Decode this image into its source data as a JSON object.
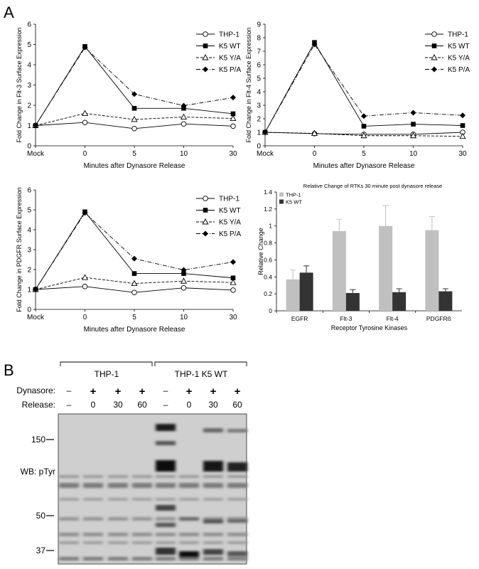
{
  "panel_a_label": "A",
  "panel_b_label": "B",
  "chart_data": [
    {
      "type": "line",
      "id": "flt3",
      "xlabel": "Minutes after Dynasore Release",
      "ylabel": "Fold Change in Flt-3 Surface Expression",
      "categories": [
        "Mock",
        "0",
        "5",
        "10",
        "30"
      ],
      "ylim": [
        0,
        6
      ],
      "yticks": [
        0,
        1,
        2,
        3,
        4,
        5,
        6
      ],
      "series": [
        {
          "name": "THP-1",
          "values": [
            1.0,
            1.15,
            0.85,
            1.08,
            0.97
          ]
        },
        {
          "name": "K5 WT",
          "values": [
            1.0,
            4.9,
            1.85,
            1.85,
            1.58
          ]
        },
        {
          "name": "K5 Y/A",
          "values": [
            1.0,
            1.6,
            1.3,
            1.42,
            1.35
          ]
        },
        {
          "name": "K5 P/A",
          "values": [
            1.0,
            4.85,
            2.55,
            1.98,
            2.38
          ]
        }
      ]
    },
    {
      "type": "line",
      "id": "flt4",
      "xlabel": "Minutes after Dynasore Release",
      "ylabel": "Fold Change in Flt-4 Surface Expression",
      "categories": [
        "Mock",
        "0",
        "5",
        "10",
        "30"
      ],
      "ylim": [
        0,
        9
      ],
      "yticks": [
        0,
        1,
        2,
        3,
        4,
        5,
        6,
        7,
        8,
        9
      ],
      "series": [
        {
          "name": "THP-1",
          "values": [
            1.0,
            0.9,
            0.85,
            0.85,
            1.0
          ]
        },
        {
          "name": "K5 WT",
          "values": [
            1.0,
            7.65,
            1.45,
            1.6,
            1.5
          ]
        },
        {
          "name": "K5 Y/A",
          "values": [
            1.0,
            0.92,
            0.75,
            0.75,
            0.7
          ]
        },
        {
          "name": "K5 P/A",
          "values": [
            1.0,
            7.5,
            2.2,
            2.45,
            2.25
          ]
        }
      ]
    },
    {
      "type": "line",
      "id": "pdgfr",
      "xlabel": "Minutes after Dynasore Release",
      "ylabel": "Fold Change in PDGFR Surface Expression",
      "categories": [
        "Mock",
        "0",
        "5",
        "10",
        "30"
      ],
      "ylim": [
        0,
        6
      ],
      "yticks": [
        0,
        1,
        2,
        3,
        4,
        5,
        6
      ],
      "series": [
        {
          "name": "THP-1",
          "values": [
            1.0,
            1.15,
            0.85,
            1.08,
            0.97
          ]
        },
        {
          "name": "K5 WT",
          "values": [
            1.0,
            4.9,
            1.8,
            1.8,
            1.58
          ]
        },
        {
          "name": "K5 Y/A",
          "values": [
            1.0,
            1.6,
            1.3,
            1.42,
            1.35
          ]
        },
        {
          "name": "K5 P/A",
          "values": [
            1.0,
            4.85,
            2.55,
            1.98,
            2.38
          ]
        }
      ]
    },
    {
      "type": "bar",
      "id": "rtk",
      "title": "Relative Change of RTKs 30 minute post dynasore release",
      "xlabel": "Receptor Tyrosine Kinases",
      "ylabel": "Relative Change",
      "categories": [
        "EGFR",
        "Flt-3",
        "Flt-4",
        "PDGFRß"
      ],
      "ylim": [
        0,
        1.4
      ],
      "yticks": [
        "0",
        "0.2",
        "0.4",
        "0.6",
        "0.8",
        "1",
        "1.2",
        "1.4"
      ],
      "legend": "top-left",
      "series": [
        {
          "name": "THP-1",
          "color": "#c0c0c0",
          "values": [
            0.37,
            0.94,
            1.0,
            0.95
          ],
          "errors": [
            0.11,
            0.14,
            0.24,
            0.16
          ]
        },
        {
          "name": "K5 WT",
          "color": "#333333",
          "values": [
            0.45,
            0.21,
            0.22,
            0.23
          ],
          "errors": [
            0.08,
            0.04,
            0.04,
            0.03
          ]
        }
      ]
    }
  ],
  "blot": {
    "group1": "THP-1",
    "group2": "THP-1 K5 WT",
    "dynasore_label": "Dynasore:",
    "release_label": "Release:",
    "dynasore": [
      "–",
      "+",
      "+",
      "+",
      "–",
      "+",
      "+",
      "+"
    ],
    "release": [
      "–",
      "0",
      "30",
      "60",
      "–",
      "0",
      "30",
      "60"
    ],
    "markers": [
      "150",
      "50",
      "37"
    ],
    "wb_label": "WB: pTyr"
  }
}
